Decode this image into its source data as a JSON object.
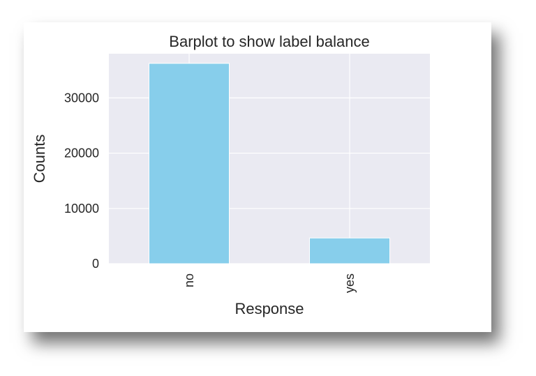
{
  "chart_data": {
    "type": "bar",
    "title": "Barplot to show label balance",
    "xlabel": "Response",
    "ylabel": "Counts",
    "categories": [
      "no",
      "yes"
    ],
    "values": [
      36250,
      4650
    ],
    "ylim": [
      0,
      38000
    ],
    "yticks": [
      0,
      10000,
      20000,
      30000
    ],
    "grid": true,
    "colors": {
      "bar": "#87CEEB",
      "plot_background": "#EAEAF2",
      "grid": "#FFFFFF",
      "text": "#262626"
    }
  }
}
